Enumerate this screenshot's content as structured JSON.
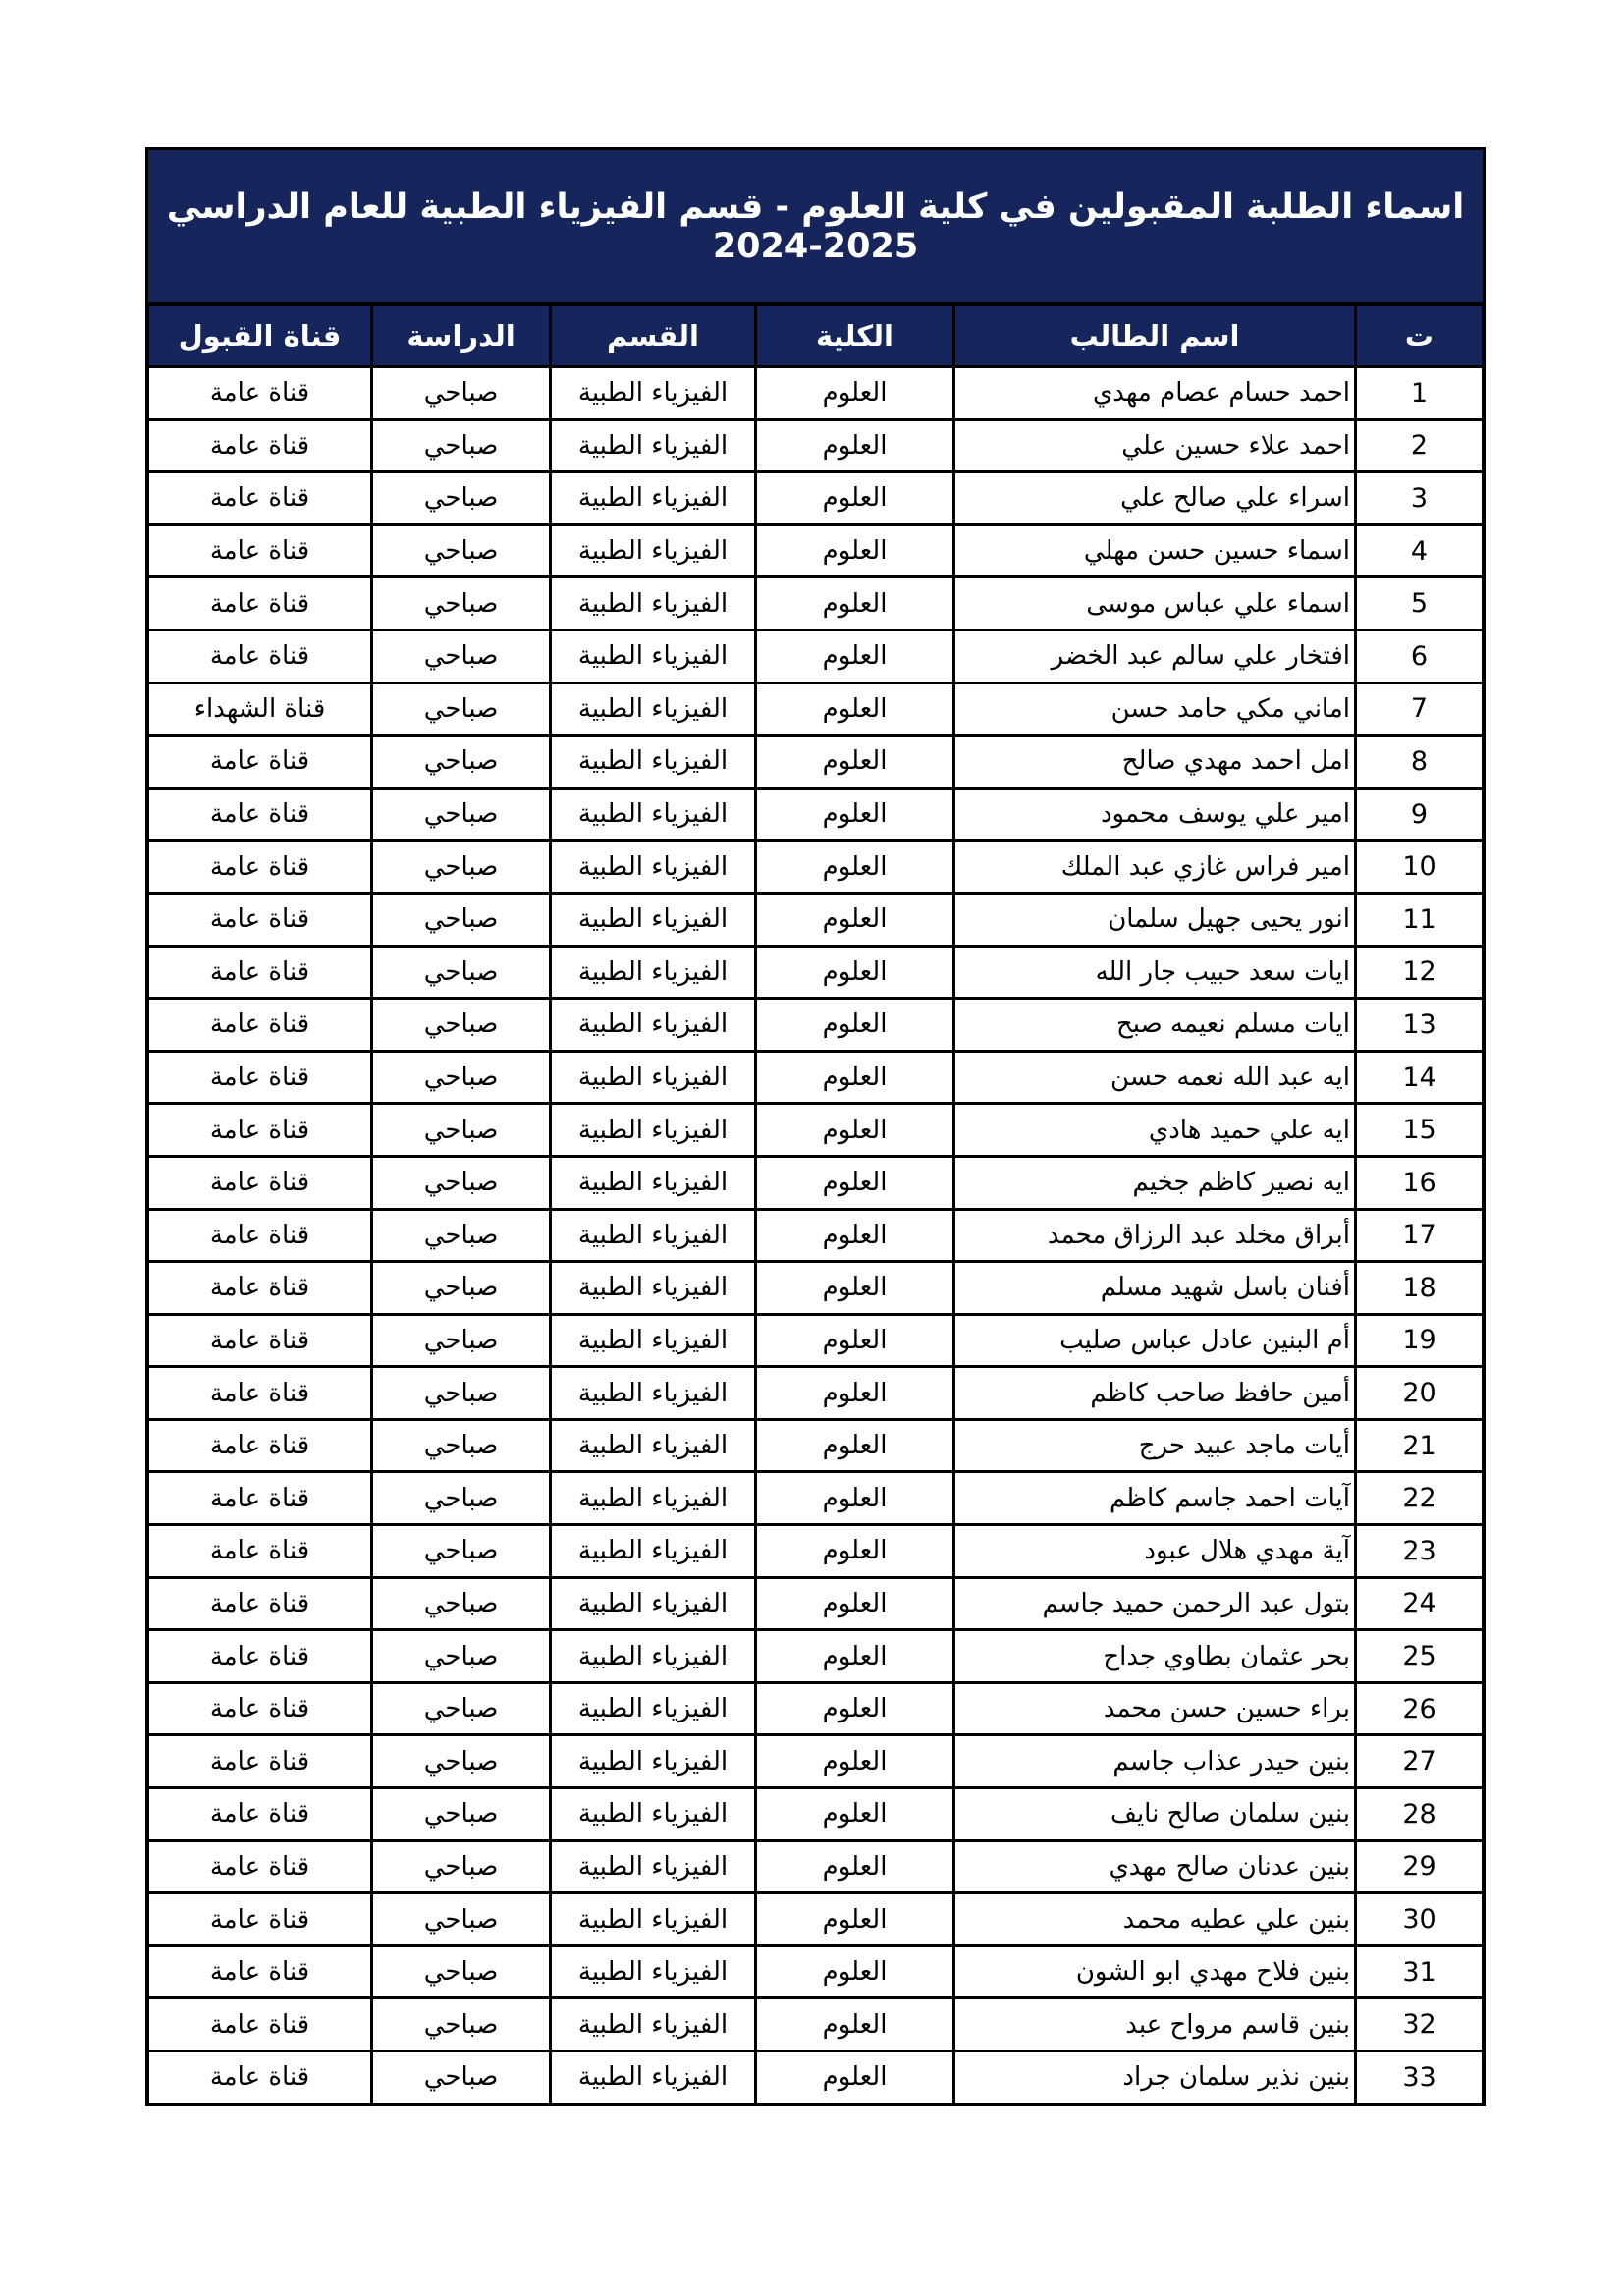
{
  "title": "اسماء الطلبة المقبولين في كلية العلوم - قسم الفيزياء الطبية للعام الدراسي 2025-2024",
  "colors": {
    "navy": "#16265c",
    "border": "#000000",
    "cell_background": "#ffffff",
    "header_text": "#ffffff",
    "cell_text": "#000000"
  },
  "table": {
    "columns": [
      {
        "key": "index",
        "label": "ت"
      },
      {
        "key": "name",
        "label": "اسم الطالب"
      },
      {
        "key": "college",
        "label": "الكلية"
      },
      {
        "key": "department",
        "label": "القسم"
      },
      {
        "key": "study",
        "label": "الدراسة"
      },
      {
        "key": "channel",
        "label": "قناة القبول"
      }
    ],
    "rows": [
      {
        "index": "1",
        "name": "احمد حسام عصام مهدي",
        "college": "العلوم",
        "department": "الفيزياء الطبية",
        "study": "صباحي",
        "channel": "قناة عامة"
      },
      {
        "index": "2",
        "name": "احمد علاء حسين علي",
        "college": "العلوم",
        "department": "الفيزياء الطبية",
        "study": "صباحي",
        "channel": "قناة عامة"
      },
      {
        "index": "3",
        "name": "اسراء علي صالح علي",
        "college": "العلوم",
        "department": "الفيزياء الطبية",
        "study": "صباحي",
        "channel": "قناة عامة"
      },
      {
        "index": "4",
        "name": "اسماء حسين حسن مهلي",
        "college": "العلوم",
        "department": "الفيزياء الطبية",
        "study": "صباحي",
        "channel": "قناة عامة"
      },
      {
        "index": "5",
        "name": "اسماء علي عباس موسى",
        "college": "العلوم",
        "department": "الفيزياء الطبية",
        "study": "صباحي",
        "channel": "قناة عامة"
      },
      {
        "index": "6",
        "name": "افتخار علي سالم عبد الخضر",
        "college": "العلوم",
        "department": "الفيزياء الطبية",
        "study": "صباحي",
        "channel": "قناة عامة"
      },
      {
        "index": "7",
        "name": "اماني مكي حامد حسن",
        "college": "العلوم",
        "department": "الفيزياء الطبية",
        "study": "صباحي",
        "channel": "قناة الشهداء"
      },
      {
        "index": "8",
        "name": "امل احمد مهدي صالح",
        "college": "العلوم",
        "department": "الفيزياء الطبية",
        "study": "صباحي",
        "channel": "قناة عامة"
      },
      {
        "index": "9",
        "name": "امير علي يوسف محمود",
        "college": "العلوم",
        "department": "الفيزياء الطبية",
        "study": "صباحي",
        "channel": "قناة عامة"
      },
      {
        "index": "10",
        "name": "امير فراس غازي عبد الملك",
        "college": "العلوم",
        "department": "الفيزياء الطبية",
        "study": "صباحي",
        "channel": "قناة عامة"
      },
      {
        "index": "11",
        "name": "انور يحيى جهيل سلمان",
        "college": "العلوم",
        "department": "الفيزياء الطبية",
        "study": "صباحي",
        "channel": "قناة عامة"
      },
      {
        "index": "12",
        "name": "ايات سعد حبيب جار الله",
        "college": "العلوم",
        "department": "الفيزياء الطبية",
        "study": "صباحي",
        "channel": "قناة عامة"
      },
      {
        "index": "13",
        "name": "ايات مسلم نعيمه صبح",
        "college": "العلوم",
        "department": "الفيزياء الطبية",
        "study": "صباحي",
        "channel": "قناة عامة"
      },
      {
        "index": "14",
        "name": "ايه عبد الله نعمه حسن",
        "college": "العلوم",
        "department": "الفيزياء الطبية",
        "study": "صباحي",
        "channel": "قناة عامة"
      },
      {
        "index": "15",
        "name": "ايه علي حميد هادي",
        "college": "العلوم",
        "department": "الفيزياء الطبية",
        "study": "صباحي",
        "channel": "قناة عامة"
      },
      {
        "index": "16",
        "name": "ايه نصير كاظم جخيم",
        "college": "العلوم",
        "department": "الفيزياء الطبية",
        "study": "صباحي",
        "channel": "قناة عامة"
      },
      {
        "index": "17",
        "name": "أبراق مخلد عبد الرزاق محمد",
        "college": "العلوم",
        "department": "الفيزياء الطبية",
        "study": "صباحي",
        "channel": "قناة عامة"
      },
      {
        "index": "18",
        "name": "أفنان باسل شهيد مسلم",
        "college": "العلوم",
        "department": "الفيزياء الطبية",
        "study": "صباحي",
        "channel": "قناة عامة"
      },
      {
        "index": "19",
        "name": "أم البنين عادل عباس صليب",
        "college": "العلوم",
        "department": "الفيزياء الطبية",
        "study": "صباحي",
        "channel": "قناة عامة"
      },
      {
        "index": "20",
        "name": "أمين حافظ صاحب كاظم",
        "college": "العلوم",
        "department": "الفيزياء الطبية",
        "study": "صباحي",
        "channel": "قناة عامة"
      },
      {
        "index": "21",
        "name": "أيات ماجد عبيد حرج",
        "college": "العلوم",
        "department": "الفيزياء الطبية",
        "study": "صباحي",
        "channel": "قناة عامة"
      },
      {
        "index": "22",
        "name": "آيات احمد جاسم كاظم",
        "college": "العلوم",
        "department": "الفيزياء الطبية",
        "study": "صباحي",
        "channel": "قناة عامة"
      },
      {
        "index": "23",
        "name": "آية مهدي هلال عبود",
        "college": "العلوم",
        "department": "الفيزياء الطبية",
        "study": "صباحي",
        "channel": "قناة عامة"
      },
      {
        "index": "24",
        "name": "بتول عبد الرحمن حميد جاسم",
        "college": "العلوم",
        "department": "الفيزياء الطبية",
        "study": "صباحي",
        "channel": "قناة عامة"
      },
      {
        "index": "25",
        "name": "بحر عثمان بطاوي جداح",
        "college": "العلوم",
        "department": "الفيزياء الطبية",
        "study": "صباحي",
        "channel": "قناة عامة"
      },
      {
        "index": "26",
        "name": "براء حسين حسن محمد",
        "college": "العلوم",
        "department": "الفيزياء الطبية",
        "study": "صباحي",
        "channel": "قناة عامة"
      },
      {
        "index": "27",
        "name": "بنين حيدر عذاب جاسم",
        "college": "العلوم",
        "department": "الفيزياء الطبية",
        "study": "صباحي",
        "channel": "قناة عامة"
      },
      {
        "index": "28",
        "name": "بنين سلمان صالح نايف",
        "college": "العلوم",
        "department": "الفيزياء الطبية",
        "study": "صباحي",
        "channel": "قناة عامة"
      },
      {
        "index": "29",
        "name": "بنين عدنان صالح مهدي",
        "college": "العلوم",
        "department": "الفيزياء الطبية",
        "study": "صباحي",
        "channel": "قناة عامة"
      },
      {
        "index": "30",
        "name": "بنين علي عطيه محمد",
        "college": "العلوم",
        "department": "الفيزياء الطبية",
        "study": "صباحي",
        "channel": "قناة عامة"
      },
      {
        "index": "31",
        "name": "بنين فلاح مهدي ابو الشون",
        "college": "العلوم",
        "department": "الفيزياء الطبية",
        "study": "صباحي",
        "channel": "قناة عامة"
      },
      {
        "index": "32",
        "name": "بنين قاسم مرواح عبد",
        "college": "العلوم",
        "department": "الفيزياء الطبية",
        "study": "صباحي",
        "channel": "قناة عامة"
      },
      {
        "index": "33",
        "name": "بنين نذير سلمان جراد",
        "college": "العلوم",
        "department": "الفيزياء الطبية",
        "study": "صباحي",
        "channel": "قناة عامة"
      }
    ]
  }
}
